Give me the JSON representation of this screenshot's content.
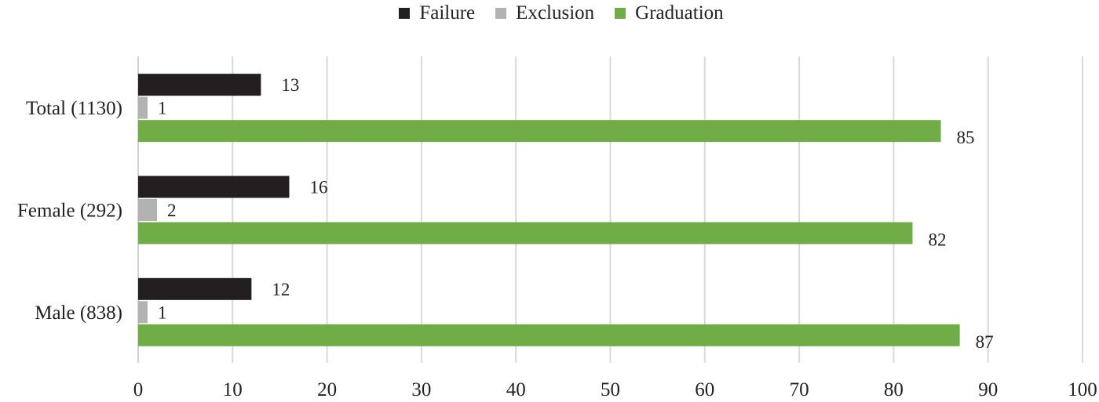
{
  "chart_data": {
    "type": "bar",
    "orientation": "horizontal",
    "categories": [
      "Total (1130)",
      "Female (292)",
      "Male (838)"
    ],
    "series": [
      {
        "name": "Failure",
        "color": "#231f20",
        "values": [
          13,
          16,
          12
        ]
      },
      {
        "name": "Exclusion",
        "color": "#b2b2b2",
        "values": [
          1,
          2,
          1
        ]
      },
      {
        "name": "Graduation",
        "color": "#70ad47",
        "values": [
          85,
          82,
          87
        ]
      }
    ],
    "x_ticks": [
      "0",
      "10",
      "20",
      "30",
      "40",
      "50",
      "60",
      "70",
      "80",
      "90",
      "100"
    ],
    "xlim": [
      0,
      100
    ],
    "grid": "vertical",
    "legend_position": "top-center",
    "data_labels": true
  }
}
